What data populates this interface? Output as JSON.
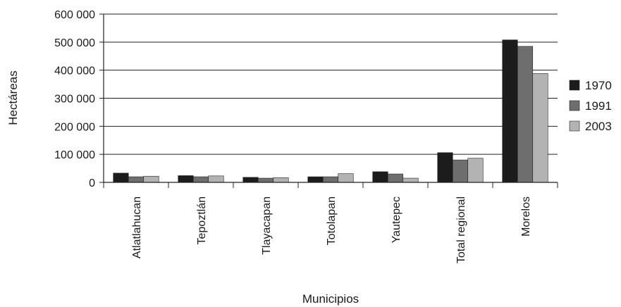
{
  "chart_data": {
    "type": "bar",
    "title": "",
    "xlabel": "Municipios",
    "ylabel": "Hectáreas",
    "categories": [
      "Atlatlahucan",
      "Tepoztlán",
      "Tlayacapan",
      "Totolapan",
      "Yautepec",
      "Total regional",
      "Morelos"
    ],
    "series": [
      {
        "name": "1970",
        "color": "#1c1c1c",
        "values": [
          33000,
          24000,
          18000,
          20000,
          38000,
          106000,
          508000
        ]
      },
      {
        "name": "1991",
        "color": "#6e6e6e",
        "values": [
          20000,
          20000,
          15000,
          20000,
          30000,
          80000,
          485000
        ]
      },
      {
        "name": "2003",
        "color": "#b3b3b3",
        "values": [
          22000,
          23000,
          17000,
          31000,
          15000,
          86000,
          388000
        ]
      }
    ],
    "ylim": [
      0,
      600000
    ],
    "yticks": [
      0,
      100000,
      200000,
      300000,
      400000,
      500000,
      600000
    ],
    "ytick_labels": [
      "0",
      "100 000",
      "200 000",
      "300 000",
      "400 000",
      "500 000",
      "600 000"
    ],
    "grid": true,
    "legend": "right"
  }
}
